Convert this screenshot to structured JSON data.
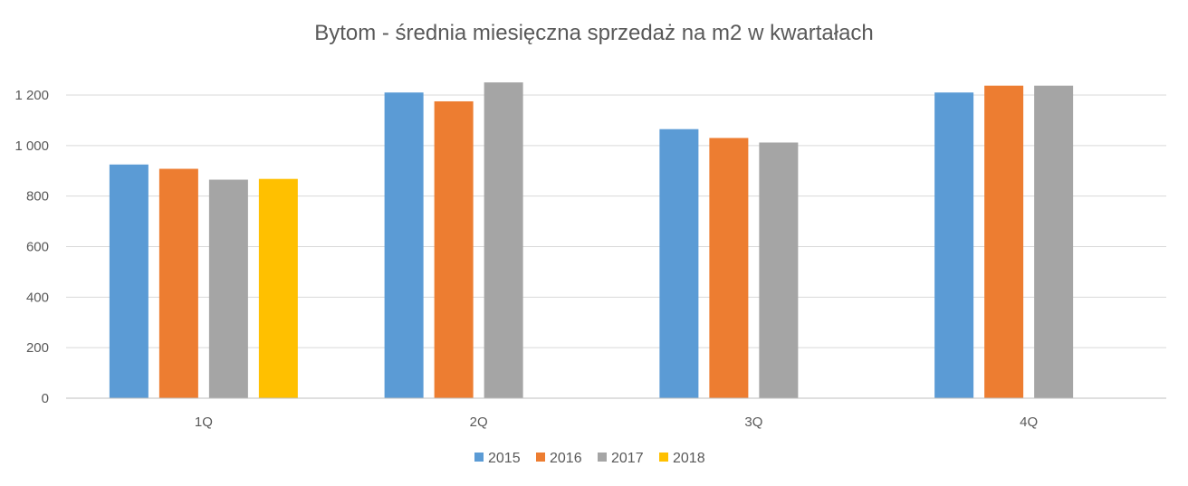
{
  "chart_data": {
    "type": "bar",
    "title": "Bytom - średnia miesięczna sprzedaż na m2 w kwartałach",
    "xlabel": "",
    "ylabel": "",
    "categories": [
      "1Q",
      "2Q",
      "3Q",
      "4Q"
    ],
    "series": [
      {
        "name": "2015",
        "color": "#5b9bd5",
        "values": [
          925,
          1210,
          1065,
          1210
        ]
      },
      {
        "name": "2016",
        "color": "#ed7d31",
        "values": [
          908,
          1175,
          1030,
          1237
        ]
      },
      {
        "name": "2017",
        "color": "#a5a5a5",
        "values": [
          865,
          1250,
          1012,
          1237
        ]
      },
      {
        "name": "2018",
        "color": "#ffc000",
        "values": [
          868,
          null,
          null,
          null
        ]
      }
    ],
    "ylim": [
      0,
      1200
    ],
    "yticks": [
      {
        "value": 0,
        "label": "0"
      },
      {
        "value": 200,
        "label": "200"
      },
      {
        "value": 400,
        "label": "400"
      },
      {
        "value": 600,
        "label": "600"
      },
      {
        "value": 800,
        "label": "800"
      },
      {
        "value": 1000,
        "label": "1 000"
      },
      {
        "value": 1200,
        "label": "1 200"
      }
    ],
    "grid": true,
    "legend_position": "bottom"
  }
}
